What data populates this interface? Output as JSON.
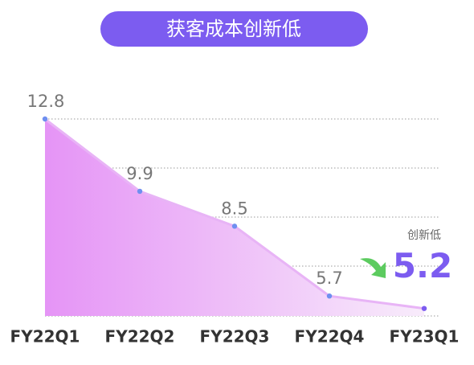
{
  "chart_data": {
    "type": "area",
    "title": "获客成本创新低",
    "categories": [
      "FY22Q1",
      "FY22Q2",
      "FY22Q3",
      "FY22Q4",
      "FY23Q1"
    ],
    "values": [
      12.8,
      9.9,
      8.5,
      5.7,
      5.2
    ],
    "ylim": [
      4.9,
      12.8
    ],
    "color": "#e49cf4",
    "annotation": "创新低"
  }
}
